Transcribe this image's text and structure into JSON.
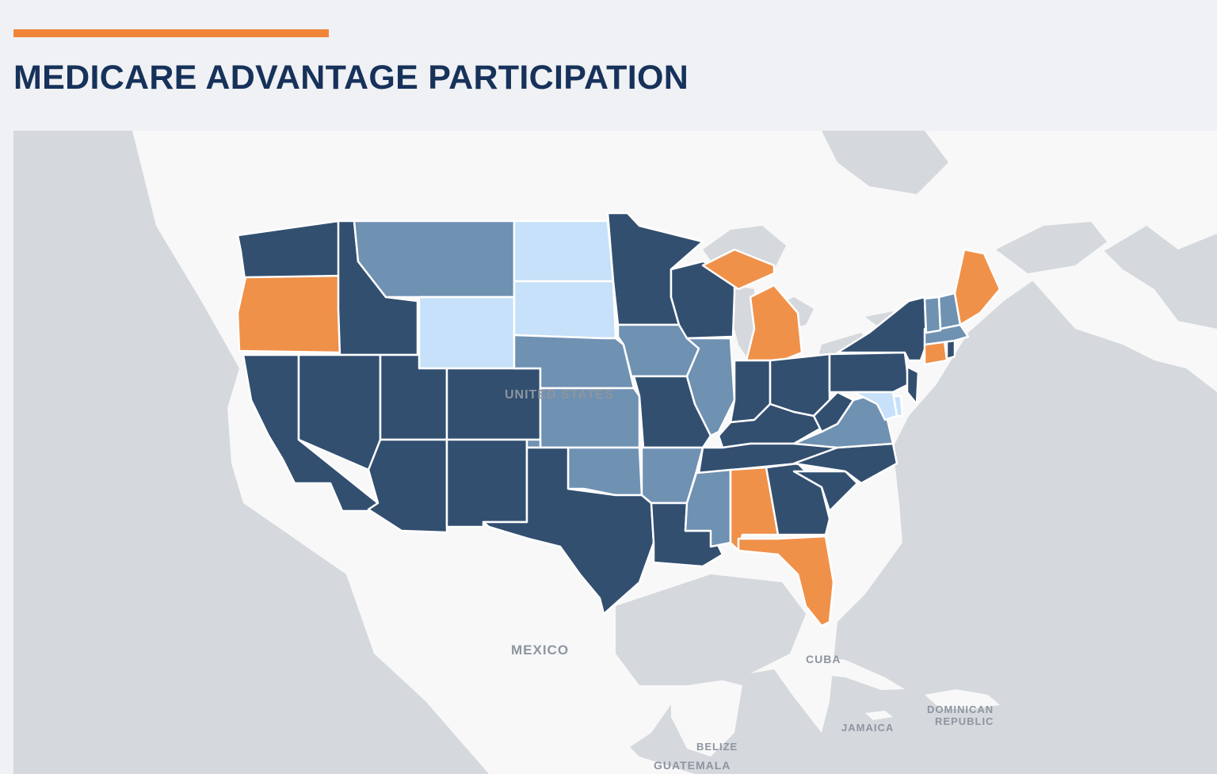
{
  "header": {
    "title": "MEDICARE ADVANTAGE PARTICIPATION"
  },
  "colors": {
    "accent": "#f0853a",
    "title": "#17325a",
    "dark": "#324f70",
    "medium": "#6f91b2",
    "light": "#c6e1f9",
    "orange": "#f0914a",
    "land": "#f8f8f8",
    "water": "#d5d8dc"
  },
  "map": {
    "country_labels": {
      "usa": "UNITED STATES",
      "mexico": "MEXICO",
      "cuba": "CUBA",
      "jamaica": "JAMAICA",
      "dominican_republic_1": "DOMINICAN",
      "dominican_republic_2": "REPUBLIC",
      "belize": "BELIZE",
      "guatemala": "GUATEMALA"
    },
    "states": {
      "WA": "dark",
      "OR": "orange",
      "CA": "dark",
      "ID": "dark",
      "NV": "dark",
      "MT": "medium",
      "WY": "light",
      "UT": "dark",
      "AZ": "dark",
      "CO": "dark",
      "NM": "dark",
      "ND": "light",
      "SD": "light",
      "NE": "medium",
      "KS": "medium",
      "OK": "medium",
      "TX": "dark",
      "MN": "dark",
      "IA": "medium",
      "MO": "dark",
      "AR": "medium",
      "LA": "dark",
      "WI": "dark",
      "IL": "medium",
      "MI": "orange",
      "IN": "dark",
      "OH": "dark",
      "KY": "dark",
      "TN": "dark",
      "MS": "medium",
      "AL": "orange",
      "GA": "dark",
      "FL": "orange",
      "SC": "dark",
      "NC": "dark",
      "VA": "medium",
      "WV": "dark",
      "PA": "dark",
      "NY": "dark",
      "NJ": "dark",
      "DE": "light",
      "MD": "light",
      "CT": "orange",
      "RI": "dark",
      "MA": "medium",
      "VT": "medium",
      "NH": "medium",
      "ME": "orange"
    }
  }
}
